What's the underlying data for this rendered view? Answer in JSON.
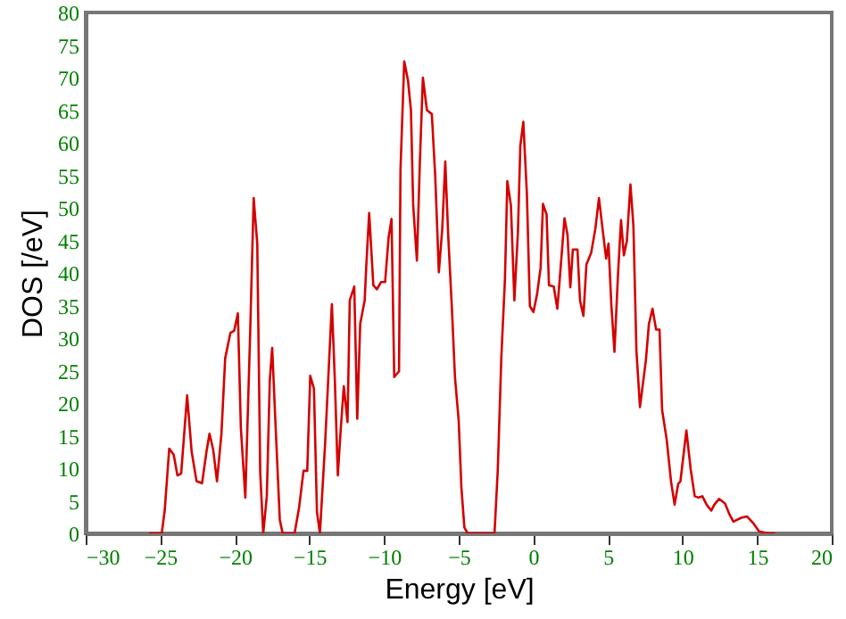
{
  "chart_data": {
    "type": "line",
    "xlabel": "Energy [eV]",
    "ylabel": "DOS [/eV]",
    "xlim": [
      -30,
      20
    ],
    "ylim": [
      0,
      80
    ],
    "xticks": [
      -30,
      -25,
      -20,
      -15,
      -10,
      -5,
      0,
      5,
      10,
      15,
      20
    ],
    "yticks": [
      0,
      5,
      10,
      15,
      20,
      25,
      30,
      35,
      40,
      45,
      50,
      55,
      60,
      65,
      70,
      75,
      80
    ],
    "grid": false,
    "series": [
      {
        "color": "#d40000",
        "x": [
          -25.76,
          -24.9,
          -24.7,
          -24.4,
          -24.1,
          -23.85,
          -23.6,
          -23.2,
          -22.9,
          -22.57,
          -22.2,
          -21.9,
          -21.7,
          -21.45,
          -21.2,
          -20.9,
          -20.65,
          -20.3,
          -20.05,
          -19.8,
          -19.6,
          -19.3,
          -18.98,
          -18.74,
          -18.5,
          -18.3,
          -18.1,
          -17.86,
          -17.66,
          -17.5,
          -17.27,
          -16.99,
          -16.8,
          -16.0,
          -15.7,
          -15.4,
          -15.15,
          -14.95,
          -14.7,
          -14.5,
          -14.3,
          -13.95,
          -13.5,
          -13.3,
          -13.1,
          -12.9,
          -12.7,
          -12.45,
          -12.3,
          -12.0,
          -11.8,
          -11.6,
          -11.3,
          -11.2,
          -11.0,
          -10.72,
          -10.48,
          -10.2,
          -9.93,
          -9.7,
          -9.5,
          -9.32,
          -9.0,
          -8.9,
          -8.65,
          -8.4,
          -8.2,
          -8.05,
          -7.8,
          -7.6,
          -7.4,
          -7.13,
          -6.8,
          -6.57,
          -6.33,
          -6.1,
          -5.9,
          -5.7,
          -5.45,
          -5.25,
          -5.0,
          -4.82,
          -4.62,
          -4.4,
          -2.6,
          -2.38,
          -2.14,
          -1.9,
          -1.74,
          -1.5,
          -1.27,
          -1.03,
          -0.87,
          -0.67,
          -0.43,
          -0.23,
          0.01,
          0.25,
          0.49,
          0.65,
          0.89,
          1.05,
          1.37,
          1.61,
          1.77,
          2.09,
          2.29,
          2.48,
          2.65,
          2.96,
          3.13,
          3.36,
          3.56,
          3.88,
          4.16,
          4.4,
          4.64,
          4.88,
          5.04,
          5.23,
          5.44,
          5.67,
          5.88,
          6.07,
          6.27,
          6.51,
          6.71,
          6.91,
          7.15,
          7.55,
          7.75,
          7.99,
          8.23,
          8.46,
          8.63,
          8.94,
          9.23,
          9.47,
          9.71,
          9.86,
          10.26,
          10.55,
          10.82,
          11.06,
          11.33,
          11.62,
          11.93,
          12.13,
          12.45,
          12.85,
          13.13,
          13.41,
          13.93,
          14.33,
          14.73,
          15.13,
          15.73,
          16.2
        ],
        "values": [
          0,
          0,
          3.6,
          13,
          12.1,
          8.9,
          9.2,
          21.2,
          12.6,
          8,
          7.7,
          12.6,
          15.3,
          12.8,
          8,
          15.3,
          26.9,
          30.8,
          31.1,
          33.8,
          16.2,
          5.5,
          30.4,
          51.5,
          44.5,
          9.2,
          0,
          5.7,
          23.5,
          28.5,
          16.4,
          2.1,
          0,
          0,
          3.9,
          9.6,
          9.6,
          24.2,
          22.2,
          3.3,
          0,
          13.9,
          35.2,
          23.5,
          8.9,
          16.2,
          22.6,
          17.1,
          35.8,
          37.9,
          17.6,
          32.2,
          35.8,
          40.8,
          49.2,
          38.1,
          37.5,
          38.6,
          38.6,
          45.4,
          48.3,
          24,
          24.9,
          55.9,
          72.5,
          69.6,
          65,
          50.4,
          41.9,
          57.2,
          70,
          65,
          64.4,
          54.7,
          40.1,
          46.8,
          57.1,
          45.6,
          34.3,
          24,
          17.3,
          7.1,
          0.9,
          0,
          0,
          9.8,
          27.2,
          39,
          54.1,
          50.4,
          35.8,
          46.3,
          59.5,
          63.2,
          52.2,
          34.9,
          34,
          36.7,
          40.8,
          50.6,
          49,
          38.1,
          37.9,
          34.5,
          39,
          48.4,
          45.9,
          37.8,
          43.6,
          43.6,
          35.8,
          33.4,
          41.3,
          43.1,
          46.8,
          51.5,
          46.8,
          42.2,
          44.5,
          35.1,
          27.9,
          39.5,
          48.1,
          42.7,
          44.9,
          53.6,
          47.2,
          28.1,
          19.4,
          26.7,
          32.2,
          34.5,
          31.3,
          31.3,
          19,
          14.4,
          8,
          4.4,
          7.6,
          8,
          15.8,
          9.8,
          5.7,
          5.5,
          5.7,
          4.4,
          3.5,
          4.4,
          5.3,
          4.6,
          3,
          1.8,
          2.4,
          2.6,
          1.6,
          0.3,
          0,
          0
        ]
      }
    ]
  }
}
